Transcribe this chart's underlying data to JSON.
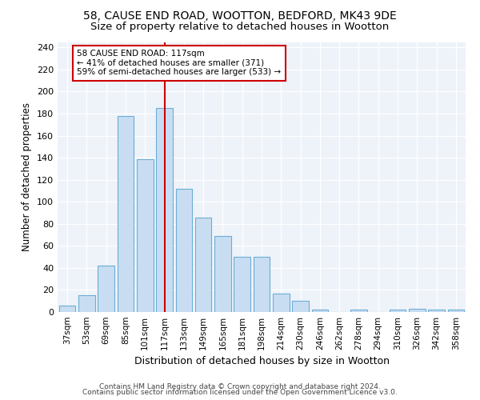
{
  "title1": "58, CAUSE END ROAD, WOOTTON, BEDFORD, MK43 9DE",
  "title2": "Size of property relative to detached houses in Wootton",
  "xlabel": "Distribution of detached houses by size in Wootton",
  "ylabel": "Number of detached properties",
  "bin_labels": [
    "37sqm",
    "53sqm",
    "69sqm",
    "85sqm",
    "101sqm",
    "117sqm",
    "133sqm",
    "149sqm",
    "165sqm",
    "181sqm",
    "198sqm",
    "214sqm",
    "230sqm",
    "246sqm",
    "262sqm",
    "278sqm",
    "294sqm",
    "310sqm",
    "326sqm",
    "342sqm",
    "358sqm"
  ],
  "bar_values": [
    6,
    15,
    42,
    178,
    139,
    185,
    112,
    86,
    69,
    50,
    50,
    17,
    10,
    2,
    0,
    2,
    0,
    2,
    3,
    2,
    2
  ],
  "bar_color": "#c9ddf2",
  "bar_edge_color": "#6aaed6",
  "vline_color": "#cc0000",
  "annotation_text": "58 CAUSE END ROAD: 117sqm\n← 41% of detached houses are smaller (371)\n59% of semi-detached houses are larger (533) →",
  "annotation_box_color": "white",
  "annotation_box_edge": "#cc0000",
  "ylim": [
    0,
    245
  ],
  "yticks": [
    0,
    20,
    40,
    60,
    80,
    100,
    120,
    140,
    160,
    180,
    200,
    220,
    240
  ],
  "footer1": "Contains HM Land Registry data © Crown copyright and database right 2024.",
  "footer2": "Contains public sector information licensed under the Open Government Licence v3.0.",
  "bg_color": "#eef2f9",
  "title1_fontsize": 10,
  "title2_fontsize": 9.5,
  "xlabel_fontsize": 9,
  "ylabel_fontsize": 8.5,
  "tick_fontsize": 7.5,
  "ytick_fontsize": 8,
  "footer_fontsize": 6.5,
  "annot_fontsize": 7.5
}
